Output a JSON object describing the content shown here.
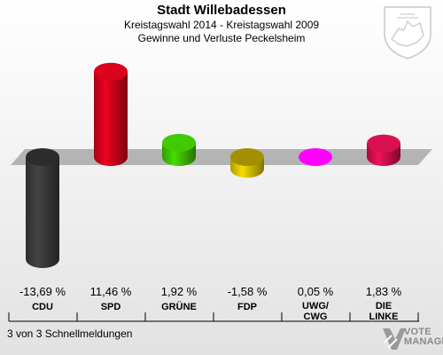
{
  "header": {
    "title": "Stadt Willebadessen",
    "subtitle_line1": "Kreistagswahl 2014 - Kreistagswahl 2009",
    "subtitle_line2": "Gewinne und Verluste Peckelsheim"
  },
  "footer": {
    "status": "3 von 3 Schnellmeldungen",
    "logo_line1": "VOTE",
    "logo_line2": "MANAGER"
  },
  "chart_data": {
    "type": "bar",
    "categories": [
      "CDU",
      "SPD",
      "GRÜNE",
      "FDP",
      "UWG/\nCWG",
      "DIE\nLINKE"
    ],
    "value_labels": [
      "-13,69 %",
      "11,46 %",
      "1,92 %",
      "-1,58 %",
      "0,05 %",
      "1,83 %"
    ],
    "values": [
      -13.69,
      11.46,
      1.92,
      -1.58,
      0.05,
      1.83
    ],
    "colors": [
      "#3a3a3a",
      "#d0021b",
      "#3fc000",
      "#d8c000",
      "#ff00ff",
      "#d0104c"
    ],
    "title": "Stadt Willebadessen",
    "grid": false,
    "legend": "none"
  }
}
